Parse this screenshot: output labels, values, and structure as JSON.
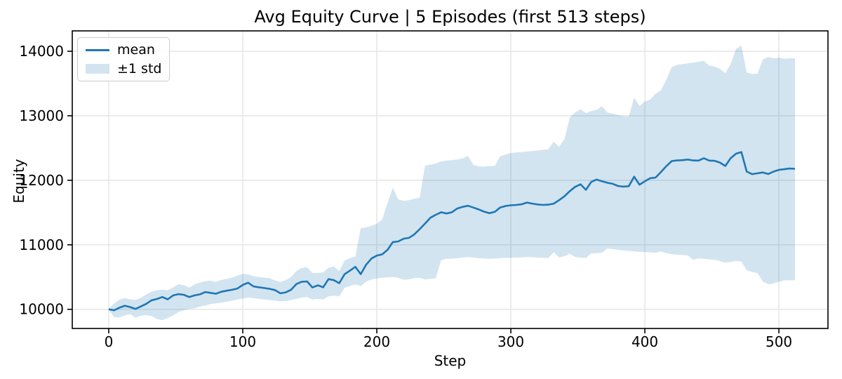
{
  "chart_data": {
    "type": "line",
    "title": "Avg Equity Curve | 5 Episodes (first 513 steps)",
    "xlabel": "Step",
    "ylabel": "Equity",
    "legend": {
      "position": "upper-left",
      "entries": [
        {
          "label": "mean",
          "swatch": "line"
        },
        {
          "label": "±1 std",
          "swatch": "patch"
        }
      ]
    },
    "line_color": "#1f77b4",
    "band_fill_color": "#1f77b4",
    "band_alpha": 0.2,
    "grid_color": "#e4e4e4",
    "grid": true,
    "xlim": [
      -27.2,
      536.6
    ],
    "ylim": [
      9703,
      14316
    ],
    "xticks": [
      0,
      100,
      200,
      300,
      400,
      500
    ],
    "xticklabels": [
      "0",
      "100",
      "200",
      "300",
      "400",
      "500"
    ],
    "yticks": [
      10000,
      11000,
      12000,
      13000,
      14000
    ],
    "yticklabels": [
      "10000",
      "11000",
      "12000",
      "13000",
      "14000"
    ],
    "series": {
      "x": [
        0,
        4,
        8,
        12,
        16,
        20,
        24,
        28,
        32,
        36,
        40,
        44,
        48,
        52,
        56,
        60,
        64,
        68,
        72,
        76,
        80,
        84,
        88,
        92,
        96,
        100,
        104,
        108,
        112,
        116,
        120,
        124,
        128,
        132,
        136,
        140,
        144,
        148,
        152,
        156,
        160,
        164,
        168,
        172,
        176,
        180,
        184,
        188,
        192,
        196,
        200,
        204,
        208,
        212,
        216,
        220,
        224,
        228,
        232,
        236,
        240,
        244,
        248,
        252,
        256,
        260,
        264,
        268,
        272,
        276,
        280,
        284,
        288,
        292,
        296,
        300,
        304,
        308,
        312,
        316,
        320,
        324,
        328,
        332,
        336,
        340,
        344,
        348,
        352,
        356,
        360,
        364,
        368,
        372,
        376,
        380,
        384,
        388,
        392,
        396,
        400,
        404,
        408,
        412,
        416,
        420,
        424,
        428,
        432,
        436,
        440,
        444,
        448,
        452,
        456,
        460,
        464,
        468,
        472,
        476,
        480,
        484,
        488,
        492,
        496,
        500,
        504,
        508,
        512
      ],
      "mean": [
        10000,
        9985,
        10025,
        10055,
        10035,
        10005,
        10045,
        10085,
        10140,
        10160,
        10190,
        10155,
        10215,
        10235,
        10225,
        10190,
        10215,
        10232,
        10268,
        10255,
        10242,
        10272,
        10288,
        10302,
        10322,
        10378,
        10412,
        10355,
        10342,
        10330,
        10318,
        10298,
        10248,
        10262,
        10302,
        10392,
        10428,
        10432,
        10338,
        10372,
        10342,
        10468,
        10452,
        10405,
        10545,
        10600,
        10658,
        10545,
        10690,
        10788,
        10832,
        10852,
        10922,
        11042,
        11052,
        11095,
        11108,
        11162,
        11242,
        11330,
        11420,
        11465,
        11505,
        11485,
        11505,
        11562,
        11588,
        11605,
        11578,
        11548,
        11515,
        11490,
        11510,
        11578,
        11602,
        11612,
        11618,
        11628,
        11655,
        11638,
        11625,
        11618,
        11622,
        11638,
        11692,
        11752,
        11832,
        11898,
        11938,
        11852,
        11975,
        12012,
        11985,
        11962,
        11945,
        11912,
        11902,
        11908,
        12055,
        11932,
        11985,
        12032,
        12042,
        12128,
        12218,
        12298,
        12308,
        12312,
        12322,
        12308,
        12305,
        12342,
        12305,
        12302,
        12275,
        12222,
        12342,
        12412,
        12438,
        12135,
        12095,
        12108,
        12122,
        12098,
        12135,
        12162,
        12172,
        12182,
        12178
      ],
      "std_lower": [
        9995,
        9880,
        9875,
        9905,
        9925,
        9870,
        9900,
        9910,
        9895,
        9850,
        9830,
        9865,
        9905,
        9955,
        9985,
        10005,
        10015,
        10040,
        10060,
        10082,
        10092,
        10102,
        10118,
        10132,
        10152,
        10168,
        10182,
        10172,
        10162,
        10152,
        10142,
        10135,
        10122,
        10128,
        10142,
        10162,
        10182,
        10192,
        10152,
        10162,
        10152,
        10202,
        10212,
        10202,
        10335,
        10362,
        10385,
        10360,
        10430,
        10462,
        10478,
        10488,
        10495,
        10502,
        10488,
        10458,
        10465,
        10482,
        10488,
        10462,
        10472,
        10482,
        10762,
        10782,
        10785,
        10792,
        10802,
        10812,
        10802,
        10792,
        10788,
        10782,
        10785,
        10792,
        10798,
        10800,
        10802,
        10805,
        10812,
        10808,
        10802,
        10798,
        10795,
        10885,
        10805,
        10822,
        10862,
        10812,
        10802,
        10795,
        10868,
        10872,
        10875,
        10942,
        10932,
        10922,
        10912,
        10905,
        10898,
        10892,
        10888,
        10882,
        10878,
        10898,
        10872,
        10855,
        10848,
        10842,
        10835,
        10768,
        10788,
        10782,
        10775,
        10768,
        10748,
        10722,
        10735,
        10748,
        10742,
        10605,
        10578,
        10562,
        10432,
        10388,
        10402,
        10428,
        10448,
        10452,
        10448
      ],
      "std_upper": [
        10010,
        10090,
        10150,
        10175,
        10155,
        10145,
        10180,
        10230,
        10275,
        10295,
        10305,
        10295,
        10340,
        10390,
        10375,
        10335,
        10385,
        10415,
        10435,
        10445,
        10425,
        10455,
        10472,
        10492,
        10522,
        10548,
        10542,
        10512,
        10502,
        10492,
        10482,
        10448,
        10422,
        10452,
        10502,
        10592,
        10642,
        10652,
        10562,
        10562,
        10572,
        10645,
        10662,
        10592,
        10755,
        10795,
        10815,
        11255,
        11270,
        11295,
        11325,
        11390,
        11650,
        11885,
        11702,
        11682,
        11692,
        11715,
        11732,
        12228,
        12242,
        12262,
        12292,
        12305,
        12312,
        12322,
        12338,
        12378,
        12242,
        12215,
        12212,
        12218,
        12222,
        12372,
        12398,
        12422,
        12432,
        12438,
        12448,
        12452,
        12462,
        12472,
        12482,
        12598,
        12518,
        12638,
        12975,
        13052,
        13102,
        13042,
        13072,
        13092,
        13148,
        13052,
        13032,
        13012,
        12995,
        12988,
        13282,
        13152,
        13222,
        13252,
        13342,
        13392,
        13558,
        13752,
        13788,
        13802,
        13812,
        13822,
        13838,
        13852,
        13782,
        13762,
        13728,
        13658,
        13802,
        14035,
        14090,
        13672,
        13648,
        13652,
        13872,
        13912,
        13888,
        13902,
        13882,
        13892,
        13888
      ]
    }
  }
}
